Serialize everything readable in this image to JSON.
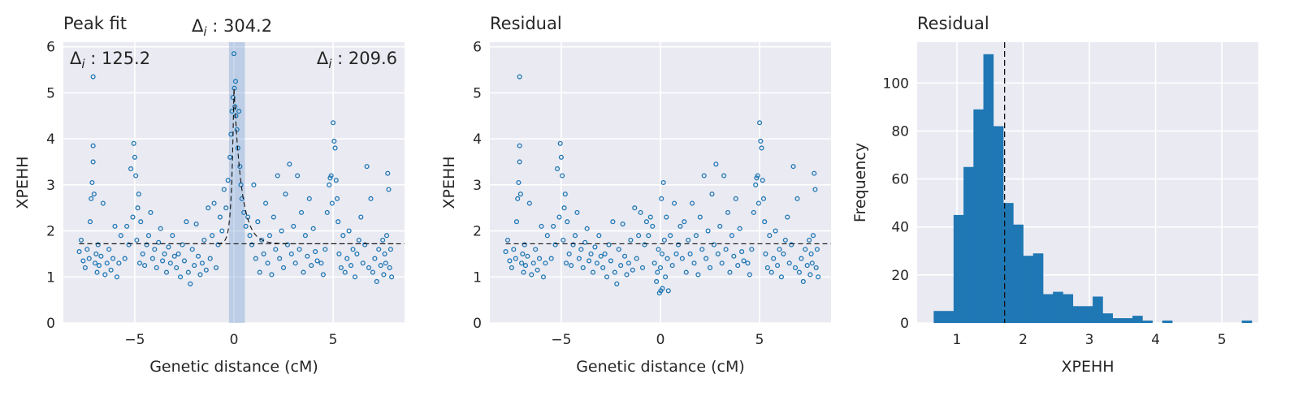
{
  "colors": {
    "point": "#1f77b4",
    "bar": "#1f77b4",
    "band": "#5b8fc9",
    "background": "#eaeaf2",
    "grid": "#ffffff"
  },
  "chart_data": [
    {
      "type": "scatter",
      "title": "Peak fit",
      "xlabel": "Genetic distance (cM)",
      "ylabel": "XPEHH",
      "xlim": [
        -8.6,
        8.6
      ],
      "ylim": [
        0,
        6.1
      ],
      "xticks": [
        -5,
        0,
        5
      ],
      "yticks": [
        0,
        1,
        2,
        3,
        4,
        5,
        6
      ],
      "baseline": 1.72,
      "highlight_band": [
        -0.25,
        0.55
      ],
      "peak": {
        "center": 0.0,
        "height": 5.1,
        "left_width": 0.12,
        "right_width": 0.38
      },
      "annotations": {
        "center": {
          "prefix": "Δ",
          "sub": "i",
          "value": " : 304.2"
        },
        "left": {
          "prefix": "Δ",
          "sub": "i",
          "value": " : 125.2"
        },
        "right": {
          "prefix": "Δ",
          "sub": "i",
          "value": " : 209.6"
        }
      },
      "series": [
        {
          "x": [
            -7.8,
            -7.7,
            -7.6,
            -7.5,
            -7.4,
            -7.3,
            -7.25,
            -7.2,
            -7.15,
            -7.1,
            -7.1,
            -7.1,
            -7.05,
            -7.0,
            -6.95,
            -6.9,
            -6.85,
            -6.8,
            -6.7,
            -6.6,
            -6.5,
            -6.4,
            -6.3,
            -6.2,
            -6.1,
            -6.0,
            -5.9,
            -5.8,
            -5.7
          ],
          "y": [
            1.55,
            1.8,
            1.35,
            1.2,
            1.6,
            1.4,
            2.2,
            2.7,
            3.05,
            3.5,
            3.85,
            5.35,
            2.8,
            1.3,
            1.5,
            1.1,
            1.7,
            1.25,
            1.45,
            2.6,
            1.05,
            1.3,
            1.6,
            1.15,
            1.4,
            2.1,
            1.0,
            1.3,
            1.9
          ]
        },
        {
          "x": [
            -5.5,
            -5.4,
            -5.3,
            -5.2,
            -5.1,
            -5.05,
            -5.0,
            -4.95,
            -4.9,
            -4.85,
            -4.8,
            -4.75,
            -4.7,
            -4.6,
            -4.5,
            -4.4,
            -4.3,
            -4.2,
            -4.1,
            -4.0,
            -3.9,
            -3.8,
            -3.7,
            -3.6,
            -3.5,
            -3.4,
            -3.3,
            -3.2,
            -3.1,
            -3.0
          ],
          "y": [
            1.4,
            2.1,
            1.7,
            3.35,
            2.3,
            3.9,
            3.6,
            3.2,
            1.8,
            2.5,
            2.8,
            1.3,
            2.2,
            1.5,
            1.25,
            1.7,
            1.9,
            2.4,
            1.4,
            1.6,
            1.2,
            1.75,
            2.05,
            1.35,
            1.5,
            1.1,
            1.65,
            1.3,
            1.9,
            1.45
          ]
        },
        {
          "x": [
            -2.9,
            -2.8,
            -2.7,
            -2.6,
            -2.5,
            -2.4,
            -2.3,
            -2.2,
            -2.1,
            -2.0,
            -1.9,
            -1.8,
            -1.7,
            -1.6,
            -1.5,
            -1.4,
            -1.3,
            -1.2,
            -1.1,
            -1.0,
            -0.9,
            -0.8,
            -0.7,
            -0.6,
            -0.5,
            -0.4
          ],
          "y": [
            1.2,
            1.5,
            1.0,
            1.7,
            1.35,
            2.2,
            1.1,
            0.85,
            1.6,
            1.25,
            2.15,
            1.45,
            1.05,
            1.3,
            1.8,
            1.15,
            2.5,
            1.4,
            1.9,
            2.6,
            1.2,
            1.7,
            2.3,
            2.0,
            2.9,
            2.5
          ]
        },
        {
          "x": [
            -0.3,
            -0.2,
            -0.15,
            -0.1,
            -0.05,
            0.0,
            0.02,
            0.05,
            0.08,
            0.1,
            0.15,
            0.2,
            0.25,
            0.3,
            0.35,
            0.4,
            0.5,
            0.6,
            0.7,
            0.8
          ],
          "y": [
            3.1,
            3.6,
            4.1,
            4.6,
            4.9,
            5.85,
            5.1,
            4.7,
            5.25,
            4.5,
            4.2,
            3.8,
            4.6,
            3.4,
            3.0,
            2.7,
            2.4,
            2.1,
            2.3,
            1.9
          ]
        },
        {
          "x": [
            0.9,
            1.0,
            1.1,
            1.2,
            1.3,
            1.4,
            1.5,
            1.6,
            1.7,
            1.8,
            1.9,
            2.0,
            2.1,
            2.2,
            2.3,
            2.4,
            2.5,
            2.6,
            2.7,
            2.8,
            2.9,
            3.0,
            3.1,
            3.2,
            3.3,
            3.4,
            3.5,
            3.6,
            3.7,
            3.8,
            3.9,
            4.0,
            4.1,
            4.2
          ],
          "y": [
            1.7,
            3.0,
            1.4,
            2.2,
            1.1,
            1.8,
            1.5,
            2.6,
            1.3,
            1.9,
            1.05,
            2.3,
            1.6,
            3.2,
            1.4,
            2.0,
            1.2,
            2.8,
            1.7,
            3.45,
            1.5,
            2.1,
            1.3,
            3.2,
            1.6,
            2.4,
            1.1,
            1.9,
            1.45,
            2.7,
            1.25,
            2.05,
            1.55,
            1.35
          ]
        },
        {
          "x": [
            4.4,
            4.5,
            4.6,
            4.7,
            4.8,
            4.85,
            4.9,
            4.95,
            5.0,
            5.05,
            5.1,
            5.15,
            5.2,
            5.25,
            5.3,
            5.4,
            5.5,
            5.6,
            5.7,
            5.8,
            5.9,
            6.0,
            6.1,
            6.2,
            6.3,
            6.4,
            6.5,
            6.6,
            6.7,
            6.8,
            6.9
          ],
          "y": [
            1.3,
            1.05,
            1.6,
            2.4,
            3.0,
            3.15,
            3.2,
            2.6,
            4.35,
            3.95,
            3.8,
            3.1,
            2.7,
            2.2,
            1.5,
            1.2,
            1.9,
            1.1,
            1.4,
            2.0,
            1.25,
            1.6,
            1.0,
            1.5,
            1.8,
            2.3,
            1.3,
            1.7,
            3.4,
            1.2,
            2.7
          ]
        },
        {
          "x": [
            7.0,
            7.1,
            7.2,
            7.3,
            7.4,
            7.5,
            7.55,
            7.6,
            7.65,
            7.7,
            7.75,
            7.8,
            7.85,
            7.9,
            7.95
          ],
          "y": [
            1.1,
            1.4,
            0.9,
            1.6,
            1.25,
            1.8,
            1.05,
            1.5,
            1.3,
            1.9,
            3.25,
            2.9,
            1.2,
            1.6,
            1.0
          ]
        }
      ]
    },
    {
      "type": "scatter",
      "title": "Residual",
      "xlabel": "Genetic distance (cM)",
      "ylabel": "XPEHH",
      "xlim": [
        -8.6,
        8.6
      ],
      "ylim": [
        0,
        6.1
      ],
      "xticks": [
        -5,
        0,
        5
      ],
      "yticks": [
        0,
        1,
        2,
        3,
        4,
        5,
        6
      ],
      "baseline": 1.72,
      "series": [
        {
          "x": [
            -7.8,
            -7.7,
            -7.6,
            -7.5,
            -7.4,
            -7.3,
            -7.25,
            -7.2,
            -7.15,
            -7.1,
            -7.1,
            -7.1,
            -7.05,
            -7.0,
            -6.95,
            -6.9,
            -6.85,
            -6.8,
            -6.7,
            -6.6,
            -6.5,
            -6.4,
            -6.3,
            -6.2,
            -6.1,
            -6.0,
            -5.9,
            -5.8,
            -5.7
          ],
          "y": [
            1.55,
            1.8,
            1.35,
            1.2,
            1.6,
            1.4,
            2.2,
            2.7,
            3.05,
            3.5,
            3.85,
            5.35,
            2.8,
            1.3,
            1.5,
            1.1,
            1.7,
            1.25,
            1.45,
            2.6,
            1.05,
            1.3,
            1.6,
            1.15,
            1.4,
            2.1,
            1.0,
            1.3,
            1.9
          ]
        },
        {
          "x": [
            -5.5,
            -5.4,
            -5.3,
            -5.2,
            -5.1,
            -5.05,
            -5.0,
            -4.95,
            -4.9,
            -4.85,
            -4.8,
            -4.75,
            -4.7,
            -4.6,
            -4.5,
            -4.4,
            -4.3,
            -4.2,
            -4.1,
            -4.0,
            -3.9,
            -3.8,
            -3.7,
            -3.6,
            -3.5,
            -3.4,
            -3.3,
            -3.2,
            -3.1,
            -3.0
          ],
          "y": [
            1.4,
            2.1,
            1.7,
            3.35,
            2.3,
            3.9,
            3.6,
            3.2,
            1.8,
            2.5,
            2.8,
            1.3,
            2.2,
            1.5,
            1.25,
            1.7,
            1.9,
            2.4,
            1.4,
            1.6,
            1.2,
            1.75,
            2.05,
            1.35,
            1.5,
            1.1,
            1.65,
            1.3,
            1.9,
            1.45
          ]
        },
        {
          "x": [
            -2.9,
            -2.8,
            -2.7,
            -2.6,
            -2.5,
            -2.4,
            -2.3,
            -2.2,
            -2.1,
            -2.0,
            -1.9,
            -1.8,
            -1.7,
            -1.6,
            -1.5,
            -1.4,
            -1.3,
            -1.2,
            -1.1,
            -1.0,
            -0.9,
            -0.8,
            -0.7,
            -0.6,
            -0.5,
            -0.4
          ],
          "y": [
            1.2,
            1.5,
            1.0,
            1.7,
            1.35,
            2.2,
            1.1,
            0.85,
            1.6,
            1.25,
            2.15,
            1.45,
            1.05,
            1.3,
            1.8,
            1.15,
            2.5,
            1.4,
            1.9,
            2.4,
            1.2,
            1.7,
            2.2,
            1.9,
            2.3,
            2.1
          ]
        },
        {
          "x": [
            -0.3,
            -0.2,
            -0.15,
            -0.1,
            -0.05,
            0.0,
            0.02,
            0.05,
            0.08,
            0.1,
            0.15,
            0.2,
            0.25,
            0.3,
            0.35,
            0.4,
            0.5,
            0.6,
            0.7,
            0.8
          ],
          "y": [
            1.3,
            0.9,
            1.1,
            1.6,
            0.65,
            1.2,
            0.7,
            2.7,
            1.5,
            0.75,
            3.05,
            1.8,
            1.0,
            2.3,
            1.4,
            0.7,
            1.9,
            1.25,
            2.6,
            1.5
          ]
        },
        {
          "x": [
            0.9,
            1.0,
            1.1,
            1.2,
            1.3,
            1.4,
            1.5,
            1.6,
            1.7,
            1.8,
            1.9,
            2.0,
            2.1,
            2.2,
            2.3,
            2.4,
            2.5,
            2.6,
            2.7,
            2.8,
            2.9,
            3.0,
            3.1,
            3.2,
            3.3,
            3.4,
            3.5,
            3.6,
            3.7,
            3.8,
            3.9,
            4.0,
            4.1,
            4.2
          ],
          "y": [
            1.7,
            2.1,
            1.4,
            2.2,
            1.1,
            1.8,
            1.5,
            2.6,
            1.3,
            1.9,
            1.05,
            2.3,
            1.6,
            3.2,
            1.4,
            2.0,
            1.2,
            2.8,
            1.7,
            3.45,
            1.5,
            2.1,
            1.3,
            3.2,
            1.6,
            2.4,
            1.1,
            1.9,
            1.45,
            2.7,
            1.25,
            2.05,
            1.55,
            1.35
          ]
        },
        {
          "x": [
            4.4,
            4.5,
            4.6,
            4.7,
            4.8,
            4.85,
            4.9,
            4.95,
            5.0,
            5.05,
            5.1,
            5.15,
            5.2,
            5.25,
            5.3,
            5.4,
            5.5,
            5.6,
            5.7,
            5.8,
            5.9,
            6.0,
            6.1,
            6.2,
            6.3,
            6.4,
            6.5,
            6.6,
            6.7,
            6.8,
            6.9
          ],
          "y": [
            1.3,
            1.05,
            1.6,
            2.4,
            3.0,
            3.15,
            3.2,
            2.6,
            4.35,
            3.95,
            3.8,
            3.1,
            2.7,
            2.2,
            1.5,
            1.2,
            1.9,
            1.1,
            1.4,
            2.0,
            1.25,
            1.6,
            1.0,
            1.5,
            1.8,
            2.3,
            1.3,
            1.7,
            3.4,
            1.2,
            2.7
          ]
        },
        {
          "x": [
            7.0,
            7.1,
            7.2,
            7.3,
            7.4,
            7.5,
            7.55,
            7.6,
            7.65,
            7.7,
            7.75,
            7.8,
            7.85,
            7.9,
            7.95
          ],
          "y": [
            1.1,
            1.4,
            0.9,
            1.6,
            1.25,
            1.8,
            1.05,
            1.5,
            1.3,
            1.9,
            3.25,
            2.9,
            1.2,
            1.6,
            1.0
          ]
        }
      ]
    },
    {
      "type": "bar",
      "subtype": "histogram",
      "title": "Residual",
      "xlabel": "XPEHH",
      "ylabel": "Frequency",
      "xlim": [
        0.4,
        5.55
      ],
      "ylim": [
        0,
        117
      ],
      "xticks": [
        1,
        2,
        3,
        4,
        5
      ],
      "yticks": [
        0,
        20,
        40,
        60,
        80,
        100
      ],
      "vline": 1.72,
      "bin_edges": [
        0.65,
        0.8,
        0.95,
        1.1,
        1.25,
        1.4,
        1.55,
        1.7,
        1.85,
        2.0,
        2.15,
        2.3,
        2.45,
        2.6,
        2.75,
        2.9,
        3.05,
        3.2,
        3.35,
        3.5,
        3.65,
        3.8,
        3.95,
        4.1,
        4.25,
        4.4,
        4.55,
        4.7,
        4.85,
        5.0,
        5.15,
        5.3,
        5.45
      ],
      "values": [
        5,
        5,
        45,
        65,
        89,
        112,
        82,
        50,
        41,
        28,
        29,
        12,
        13,
        12,
        7,
        7,
        11,
        4,
        2,
        2,
        3,
        1,
        0,
        1,
        0,
        0,
        0,
        0,
        0,
        0,
        0,
        1
      ]
    }
  ]
}
